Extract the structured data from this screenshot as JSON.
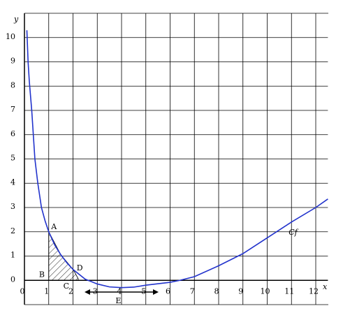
{
  "chart_data": {
    "type": "line",
    "x": [
      0.1,
      0.15,
      0.2,
      0.3,
      0.43,
      0.55,
      0.7,
      0.85,
      1,
      1.25,
      1.5,
      1.75,
      2,
      2.5,
      3,
      3.5,
      4,
      4.5,
      5,
      6,
      6.4,
      7,
      8,
      9,
      10,
      11,
      12,
      12.5
    ],
    "series": [
      {
        "name": "Cf",
        "color": "#2233cc",
        "values": [
          10.3,
          9,
          8.2,
          7,
          5,
          4,
          3,
          2.45,
          2,
          1.45,
          1.05,
          0.72,
          0.45,
          0.05,
          -0.15,
          -0.27,
          -0.3,
          -0.28,
          -0.2,
          -0.08,
          0,
          0.15,
          0.6,
          1.1,
          1.75,
          2.4,
          3.0,
          3.35
        ]
      }
    ],
    "xlim": [
      0,
      12.5
    ],
    "ylim": [
      -1,
      11
    ],
    "xticks": [
      0,
      1,
      2,
      3,
      4,
      5,
      6,
      7,
      8,
      9,
      10,
      11,
      12
    ],
    "yticks": [
      0,
      1,
      2,
      3,
      4,
      5,
      6,
      7,
      8,
      9,
      10
    ],
    "xlabel": "x",
    "ylabel": "y",
    "grid": true,
    "annotations": [
      "A",
      "B",
      "C",
      "D",
      "E"
    ]
  }
}
